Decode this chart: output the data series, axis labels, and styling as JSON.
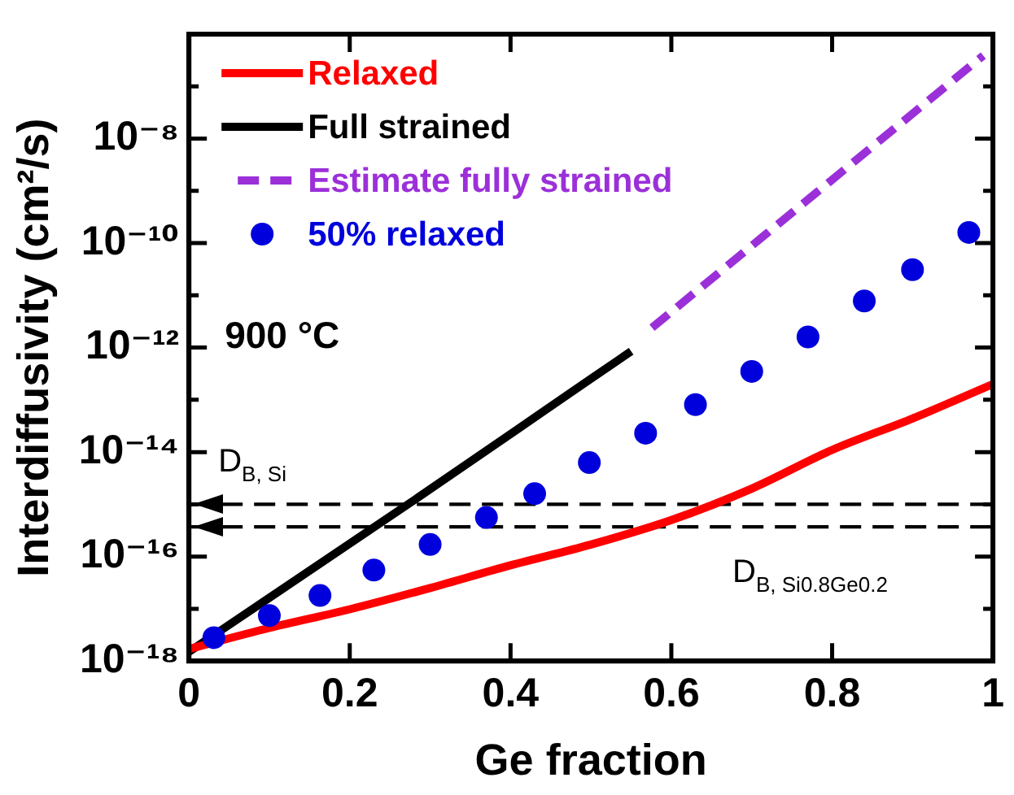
{
  "chart_data": {
    "type": "line",
    "xlabel": "Ge fraction",
    "ylabel": "Interdiffusivity (cm²/s)",
    "log": "y",
    "xlim": [
      0,
      1
    ],
    "xticks": [
      0,
      0.2,
      0.4,
      0.6,
      0.8,
      1
    ],
    "ylim": [
      1e-18,
      1e-06
    ],
    "yticks": [
      {
        "value": 1e-18,
        "label": "10⁻¹⁸"
      },
      {
        "value": 1e-17,
        "label": null
      },
      {
        "value": 1e-16,
        "label": "10⁻¹⁶"
      },
      {
        "value": 1e-15,
        "label": null
      },
      {
        "value": 1e-14,
        "label": "10⁻¹⁴"
      },
      {
        "value": 1e-13,
        "label": null
      },
      {
        "value": 1e-12,
        "label": "10⁻¹²"
      },
      {
        "value": 1e-11,
        "label": null
      },
      {
        "value": 1e-10,
        "label": "10⁻¹⁰"
      },
      {
        "value": 1e-09,
        "label": null
      },
      {
        "value": 1e-08,
        "label": "10⁻⁸"
      },
      {
        "value": 1e-07,
        "label": null
      }
    ],
    "grid": false,
    "legend": "top left",
    "series": [
      {
        "name": "Relaxed",
        "color": "#ff0000",
        "marker": "none",
        "line_style": "solid",
        "x": [
          0,
          0.1,
          0.2,
          0.3,
          0.4,
          0.5,
          0.6,
          0.7,
          0.8,
          0.9,
          1
        ],
        "values": [
          1.7e-18,
          4.3e-18,
          9.8e-18,
          2.5e-17,
          6.8e-17,
          1.7e-16,
          5e-16,
          2e-15,
          1.1e-14,
          4.4e-14,
          2e-13
        ]
      },
      {
        "name": "Full strained",
        "color": "#000000",
        "marker": "none",
        "line_style": "solid",
        "x": [
          0,
          0.28,
          0.496,
          0.55
        ],
        "values": [
          1.5e-18,
          1.2e-15,
          2.3e-13,
          8.5e-13
        ]
      },
      {
        "name": "Estimate fully strained",
        "color": "#9b30d9",
        "marker": "none",
        "line_style": "dashed",
        "x": [
          0.576,
          0.988
        ],
        "values": [
          2.4e-12,
          3.9e-07
        ]
      },
      {
        "name": "50% relaxed",
        "type": "scatter",
        "color": "#0000dd",
        "marker": "circle",
        "x": [
          0.031,
          0.1,
          0.163,
          0.23,
          0.3,
          0.37,
          0.43,
          0.498,
          0.568,
          0.63,
          0.7,
          0.77,
          0.84,
          0.9,
          0.97
        ],
        "values": [
          2.8e-18,
          7.4e-18,
          1.8e-17,
          5.5e-17,
          1.7e-16,
          5.6e-16,
          1.6e-15,
          6.3e-15,
          2.3e-14,
          8.1e-14,
          3.5e-13,
          1.6e-12,
          7.8e-12,
          3.1e-11,
          1.6e-10
        ]
      }
    ],
    "ref_lines": [
      {
        "axis": "y",
        "value": 1e-15,
        "label": "D$_{B, Si}$",
        "color": "#000000",
        "line_style": "dashed"
      },
      {
        "axis": "y",
        "value": 3.7e-16,
        "label": "D$_{B, Si0.8Ge0.2}$",
        "color": "#000000",
        "line_style": "dashed"
      }
    ],
    "annotations": [
      "900 °C"
    ]
  }
}
